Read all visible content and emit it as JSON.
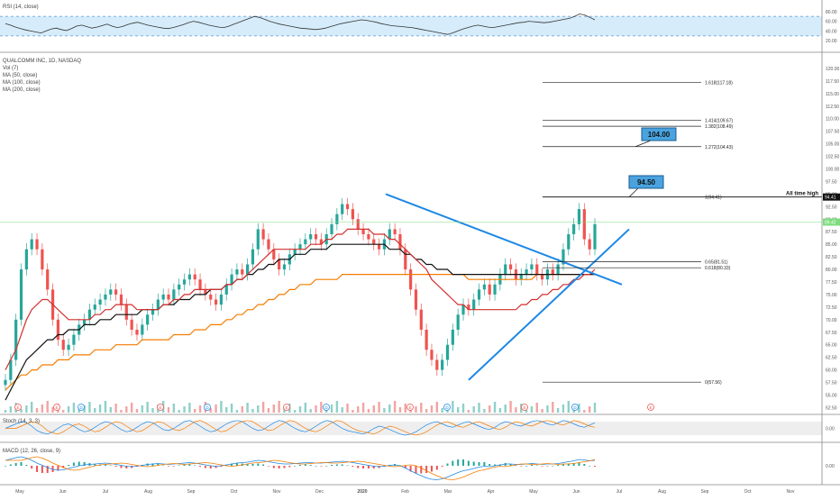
{
  "rsi": {
    "label": "RSI (14, close)",
    "ticks": [
      80,
      60,
      40,
      20
    ],
    "tick_labels": [
      "80.00",
      "60.00",
      "40.00",
      "20.00"
    ],
    "band": [
      30,
      70
    ],
    "series": [
      55,
      52,
      48,
      45,
      42,
      40,
      38,
      36,
      40,
      44,
      46,
      43,
      41,
      45,
      50,
      52,
      49,
      46,
      48,
      51,
      54,
      50,
      47,
      49,
      53,
      56,
      58,
      55,
      52,
      50,
      48,
      46,
      45,
      47,
      50,
      53,
      57,
      60,
      58,
      55,
      52,
      50,
      48,
      47,
      50,
      54,
      58,
      62,
      66,
      70,
      68,
      64,
      60,
      57,
      54,
      52,
      50,
      48,
      46,
      45,
      44,
      43,
      44,
      46,
      49,
      52,
      55,
      57,
      59,
      61,
      63,
      62,
      60,
      58,
      55,
      53,
      51,
      50,
      49,
      48,
      47,
      45,
      43,
      41,
      39,
      37,
      35,
      33,
      36,
      40,
      44,
      47,
      50,
      52,
      50,
      48,
      47,
      49,
      51,
      53,
      55,
      57,
      58,
      60,
      59,
      58,
      57,
      58,
      60,
      62,
      64,
      66,
      70,
      75,
      73,
      68,
      63
    ]
  },
  "main": {
    "title": "QUALCOMM INC, 1D, NASDAQ",
    "legend": [
      "Vol (7)",
      "MA (50, close)",
      "MA (100, close)",
      "MA (200, close)"
    ],
    "y_ticks": [
      52.5,
      55,
      57.5,
      60,
      62.5,
      65,
      67.5,
      70,
      72.5,
      75,
      77.5,
      80,
      82.5,
      85,
      87.5,
      90,
      92.5,
      95,
      97.5,
      100,
      102.5,
      105,
      107.5,
      110,
      112.5,
      115,
      117.5,
      120
    ],
    "y_tick_labels": [
      "52.50",
      "55.00",
      "57.50",
      "60.00",
      "62.50",
      "65.00",
      "67.50",
      "70.00",
      "72.50",
      "75.00",
      "77.50",
      "80.00",
      "82.50",
      "85.00",
      "87.50",
      "90.00",
      "92.50",
      "95.00",
      "97.50",
      "100.00",
      "102.50",
      "105.00",
      "107.50",
      "110.00",
      "112.50",
      "115.00",
      "117.50",
      "120.00"
    ],
    "ylim": [
      51.5,
      122.5
    ],
    "last_price_label": "89.42",
    "ath_price_label": "94.41",
    "colors": {
      "up": "#26a69a",
      "down": "#ef5350",
      "ma50": "#d32f2f",
      "ma100": "#111111",
      "ma200": "#f57c00",
      "trend": "#1e88e5"
    }
  },
  "fib_levels": [
    {
      "ratio_label": "1.618(117.18)",
      "value": 117.18
    },
    {
      "ratio_label": "1.414(109.67)",
      "value": 109.67
    },
    {
      "ratio_label": "1.382(108.49)",
      "value": 108.49
    },
    {
      "ratio_label": "1.272(104.43)",
      "value": 104.43
    },
    {
      "ratio_label": "1(94.41)",
      "value": 94.41
    },
    {
      "ratio_label": "0.65(81.51)",
      "value": 81.51
    },
    {
      "ratio_label": "0.618(80.33)",
      "value": 80.33
    },
    {
      "ratio_label": "0(57.56)",
      "value": 57.56
    }
  ],
  "annotations": {
    "target_1": "104.00",
    "target_2": "94.50",
    "all_time_high": "All time high"
  },
  "chart_data": {
    "type": "candlestick",
    "x_axis_labels": [
      "May",
      "Jun",
      "Jul",
      "Aug",
      "Sep",
      "Oct",
      "Nov",
      "Dec",
      "2020",
      "Feb",
      "Mar",
      "Apr",
      "May",
      "Jun",
      "Jul",
      "Aug",
      "Sep",
      "Oct",
      "Nov"
    ],
    "close": [
      58,
      62,
      70,
      80,
      84,
      86,
      84,
      80,
      76,
      70,
      66,
      64,
      65,
      67,
      69,
      70,
      72,
      73,
      74,
      75,
      76,
      75,
      73,
      70,
      68,
      67,
      69,
      71,
      72,
      74,
      75,
      74,
      76,
      77,
      78,
      79,
      78,
      76,
      75,
      74,
      73,
      75,
      77,
      79,
      80,
      79,
      81,
      84,
      88,
      86,
      84,
      82,
      80,
      81,
      83,
      84,
      85,
      86,
      87,
      86,
      85,
      87,
      89,
      91,
      93,
      92,
      90,
      88,
      87,
      86,
      85,
      84,
      86,
      88,
      87,
      84,
      80,
      76,
      72,
      68,
      64,
      62,
      60,
      62,
      65,
      68,
      71,
      73,
      72,
      74,
      76,
      77,
      75,
      77,
      79,
      81,
      80,
      78,
      79,
      80,
      81,
      79,
      78,
      80,
      79,
      81,
      84,
      87,
      89,
      92,
      86,
      84,
      89
    ],
    "ma50": [
      60,
      62,
      64,
      67,
      70,
      72,
      73,
      74,
      74,
      73,
      72,
      71,
      70,
      70,
      70,
      70,
      70,
      71,
      71,
      72,
      72,
      73,
      73,
      73,
      73,
      72,
      72,
      72,
      72,
      72,
      73,
      73,
      74,
      74,
      75,
      75,
      76,
      76,
      76,
      76,
      76,
      76,
      77,
      77,
      78,
      78,
      79,
      80,
      81,
      82,
      83,
      84,
      84,
      84,
      84,
      84,
      84,
      84,
      85,
      85,
      85,
      86,
      86,
      87,
      87,
      88,
      88,
      88,
      88,
      88,
      87,
      87,
      87,
      86,
      86,
      85,
      84,
      83,
      82,
      81,
      80,
      78,
      77,
      76,
      75,
      74,
      73,
      73,
      72,
      72,
      72,
      72,
      72,
      72,
      72,
      72,
      72,
      72,
      73,
      73,
      74,
      74,
      75,
      75,
      76,
      76,
      77,
      77,
      78,
      78,
      79,
      79,
      80
    ],
    "ma100": [
      54,
      56,
      58,
      60,
      62,
      63,
      64,
      65,
      66,
      66,
      67,
      67,
      68,
      68,
      68,
      69,
      69,
      69,
      70,
      70,
      70,
      71,
      71,
      71,
      71,
      71,
      72,
      72,
      72,
      72,
      73,
      73,
      73,
      74,
      74,
      74,
      75,
      75,
      75,
      76,
      76,
      76,
      77,
      77,
      78,
      78,
      79,
      79,
      80,
      80,
      81,
      81,
      82,
      82,
      82,
      83,
      83,
      83,
      84,
      84,
      84,
      84,
      85,
      85,
      85,
      85,
      85,
      85,
      85,
      85,
      85,
      85,
      85,
      84,
      84,
      84,
      83,
      83,
      82,
      82,
      81,
      81,
      80,
      80,
      80,
      79,
      79,
      79,
      79,
      79,
      79,
      79,
      79,
      79,
      79,
      79,
      79,
      79,
      79,
      79,
      79,
      79,
      79,
      79,
      79,
      79,
      79,
      79,
      79,
      79,
      79,
      79,
      79
    ],
    "ma200": [
      56,
      57,
      58,
      59,
      59,
      60,
      60,
      61,
      61,
      61,
      62,
      62,
      62,
      63,
      63,
      63,
      63,
      64,
      64,
      64,
      64,
      65,
      65,
      65,
      65,
      65,
      66,
      66,
      66,
      66,
      66,
      66,
      67,
      67,
      67,
      67,
      68,
      68,
      68,
      69,
      69,
      69,
      70,
      70,
      71,
      71,
      72,
      72,
      73,
      73,
      74,
      74,
      75,
      75,
      76,
      76,
      77,
      77,
      77,
      78,
      78,
      78,
      78,
      78,
      79,
      79,
      79,
      79,
      79,
      79,
      79,
      79,
      79,
      79,
      79,
      79,
      79,
      79,
      79,
      79,
      79,
      79,
      79,
      79,
      79,
      79,
      79,
      79,
      78,
      78,
      78,
      78,
      78,
      78,
      78,
      78,
      78,
      78,
      78,
      78,
      78,
      79,
      79,
      79,
      79,
      79,
      79,
      79,
      79,
      79,
      79,
      79,
      79
    ],
    "ylim": [
      51.5,
      122.5
    ]
  },
  "stoch": {
    "label": "Stoch (14, 3, 3)",
    "tick_label": "0.00",
    "series": [
      50,
      60,
      70,
      80,
      75,
      60,
      40,
      30,
      25,
      35,
      50,
      65,
      70,
      60,
      45,
      35,
      40,
      55,
      70,
      80,
      75,
      60,
      45,
      35,
      40,
      55,
      70,
      80,
      75,
      60,
      45,
      40,
      50,
      65,
      80,
      85,
      75,
      60,
      45,
      35,
      40,
      55,
      70,
      80,
      85,
      80,
      65,
      50,
      40,
      45,
      60,
      75,
      85,
      80,
      65,
      50,
      40,
      35,
      45,
      60,
      75,
      85,
      80,
      65,
      50,
      40,
      35,
      30,
      25,
      35,
      50,
      60,
      55,
      45,
      35,
      25,
      20,
      25,
      35,
      50,
      65,
      75,
      80,
      70,
      60,
      55,
      65,
      75,
      80,
      70,
      60,
      50,
      45,
      55,
      70,
      80,
      75,
      65,
      60,
      70,
      80,
      85,
      80,
      70,
      65,
      75,
      85,
      80,
      70,
      60,
      55,
      65,
      75
    ]
  },
  "macd": {
    "label": "MACD (12, 26, close, 9)",
    "tick_label": "0.00",
    "series": [
      1.2,
      1.5,
      1.8,
      2.0,
      1.7,
      1.2,
      0.6,
      0.1,
      -0.4,
      -0.8,
      -1.0,
      -0.9,
      -0.6,
      -0.3,
      0,
      0.2,
      0.3,
      0.4,
      0.5,
      0.6,
      0.5,
      0.3,
      0.1,
      -0.1,
      -0.2,
      -0.1,
      0.1,
      0.3,
      0.4,
      0.5,
      0.4,
      0.3,
      0.4,
      0.5,
      0.6,
      0.7,
      0.6,
      0.4,
      0.2,
      0,
      -0.1,
      0,
      0.2,
      0.4,
      0.6,
      0.7,
      0.8,
      1.0,
      1.2,
      1.1,
      0.9,
      0.7,
      0.5,
      0.4,
      0.4,
      0.5,
      0.6,
      0.7,
      0.7,
      0.6,
      0.6,
      0.7,
      0.8,
      0.9,
      1.0,
      0.9,
      0.7,
      0.5,
      0.3,
      0.1,
      -0.1,
      -0.2,
      -0.1,
      0.1,
      0.2,
      0,
      -0.5,
      -1.1,
      -1.7,
      -2.2,
      -2.7,
      -3.0,
      -3.1,
      -2.9,
      -2.5,
      -2.0,
      -1.5,
      -1.1,
      -0.9,
      -0.6,
      -0.3,
      -0.1,
      -0.2,
      0,
      0.2,
      0.4,
      0.4,
      0.3,
      0.3,
      0.4,
      0.5,
      0.4,
      0.3,
      0.4,
      0.4,
      0.5,
      0.7,
      0.9,
      1.1,
      1.4,
      1.3,
      1.1,
      1.2
    ]
  }
}
